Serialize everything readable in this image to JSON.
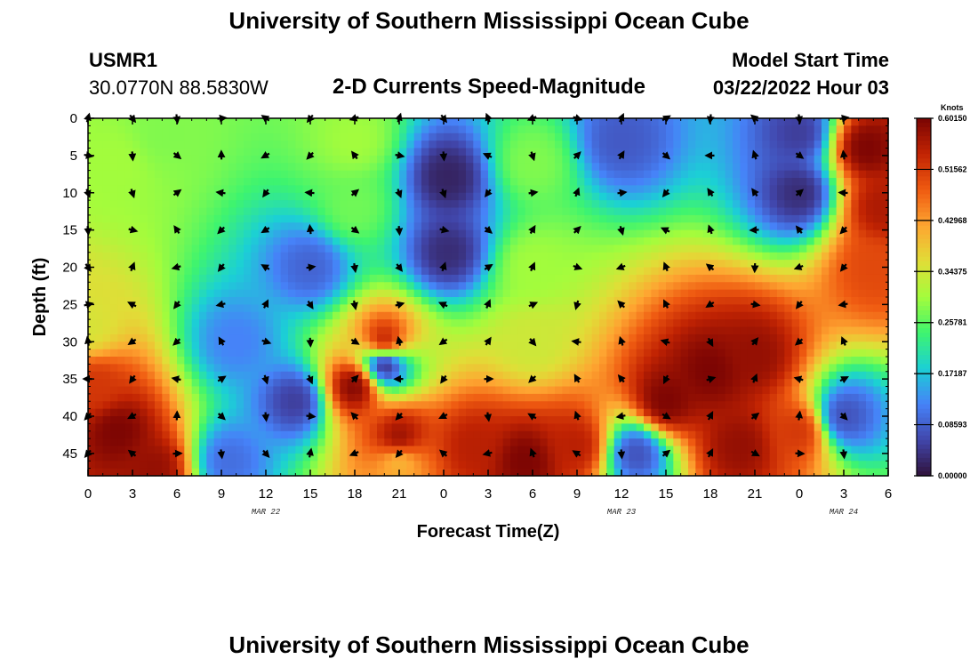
{
  "header": {
    "title": "University of Southern Mississippi Ocean Cube",
    "station_id": "USMR1",
    "coordinates": "30.0770N  88.5830W",
    "plot_title": "2-D Currents Speed-Magnitude",
    "model_start_label": "Model Start Time",
    "model_start_value": "03/22/2022 Hour 03"
  },
  "chart_data": {
    "type": "heatmap",
    "variable": "Current speed magnitude with direction vectors",
    "xlabel": "Forecast Time(Z)",
    "ylabel": "Depth (ft)",
    "x_tick_labels": [
      "0",
      "3",
      "6",
      "9",
      "12",
      "15",
      "18",
      "21",
      "0",
      "3",
      "6",
      "9",
      "12",
      "15",
      "18",
      "21",
      "0",
      "3",
      "6"
    ],
    "date_labels": [
      {
        "label": "MAR 22",
        "at_hour_index": 4
      },
      {
        "label": "MAR 23",
        "at_hour_index": 12
      },
      {
        "label": "MAR 24",
        "at_hour_index": 17
      }
    ],
    "x_range_hours": [
      0,
      54
    ],
    "y_tick_labels": [
      "0",
      "5",
      "10",
      "15",
      "20",
      "25",
      "30",
      "35",
      "40",
      "45"
    ],
    "y_range_ft": [
      0,
      48
    ],
    "colorbar": {
      "title": "Knots",
      "tick_labels": [
        "0.60150",
        "0.51562",
        "0.42968",
        "0.34375",
        "0.25781",
        "0.17187",
        "0.08593",
        "0.00000"
      ],
      "range": [
        0,
        0.6015
      ]
    },
    "speed_hotspots": [
      {
        "hour": 2,
        "depth": 42,
        "speed": 0.6
      },
      {
        "hour": 4.5,
        "depth": 47,
        "speed": 0.58
      },
      {
        "hour": 0.5,
        "depth": 36,
        "speed": 0.52
      },
      {
        "hour": 18,
        "depth": 36,
        "speed": 0.6
      },
      {
        "hour": 20,
        "depth": 30,
        "speed": 0.56
      },
      {
        "hour": 21,
        "depth": 43,
        "speed": 0.58
      },
      {
        "hour": 26,
        "depth": 44,
        "speed": 0.55
      },
      {
        "hour": 29.5,
        "depth": 46,
        "speed": 0.6
      },
      {
        "hour": 33,
        "depth": 44,
        "speed": 0.55
      },
      {
        "hour": 39,
        "depth": 38,
        "speed": 0.6
      },
      {
        "hour": 42,
        "depth": 34,
        "speed": 0.6
      },
      {
        "hour": 45,
        "depth": 32,
        "speed": 0.58
      },
      {
        "hour": 44,
        "depth": 44,
        "speed": 0.58
      },
      {
        "hour": 48,
        "depth": 42,
        "speed": 0.52
      },
      {
        "hour": 52.5,
        "depth": 4,
        "speed": 0.6
      },
      {
        "hour": 53.5,
        "depth": 12,
        "speed": 0.56
      },
      {
        "hour": 53,
        "depth": 20,
        "speed": 0.5
      },
      {
        "hour": 2,
        "depth": 6,
        "speed": 0.3
      },
      {
        "hour": 5,
        "depth": 2,
        "speed": 0.28
      },
      {
        "hour": 18,
        "depth": 3,
        "speed": 0.3
      },
      {
        "hour": 18,
        "depth": 12,
        "speed": 0.27
      },
      {
        "hour": 30,
        "depth": 6,
        "speed": 0.28
      },
      {
        "hour": 30,
        "depth": 20,
        "speed": 0.3
      },
      {
        "hour": 30,
        "depth": 30,
        "speed": 0.34
      },
      {
        "hour": 21,
        "depth": 46,
        "speed": 0.4
      },
      {
        "hour": 0,
        "depth": 28,
        "speed": 0.35
      }
    ],
    "speed_lows": [
      {
        "hour": 24.3,
        "depth": 8,
        "speed": 0.02
      },
      {
        "hour": 24.3,
        "depth": 18,
        "speed": 0.03
      },
      {
        "hour": 20,
        "depth": 33,
        "speed": 0.01
      },
      {
        "hour": 48,
        "depth": 10,
        "speed": 0.03
      },
      {
        "hour": 48,
        "depth": 2,
        "speed": 0.05
      },
      {
        "hour": 36,
        "depth": 3,
        "speed": 0.08
      },
      {
        "hour": 14,
        "depth": 38,
        "speed": 0.05
      },
      {
        "hour": 9.5,
        "depth": 46,
        "speed": 0.1
      },
      {
        "hour": 37,
        "depth": 45,
        "speed": 0.07
      },
      {
        "hour": 51,
        "depth": 40,
        "speed": 0.07
      },
      {
        "hour": 15,
        "depth": 20,
        "speed": 0.09
      },
      {
        "hour": 10,
        "depth": 30,
        "speed": 0.12
      }
    ],
    "vector_grid": {
      "hours": [
        0,
        3,
        6,
        9,
        12,
        15,
        18,
        21,
        24,
        27,
        30,
        33,
        36,
        39,
        42,
        45,
        48,
        51
      ],
      "depths": [
        0,
        5,
        10,
        15,
        20,
        25,
        30,
        35,
        40,
        45
      ]
    }
  }
}
